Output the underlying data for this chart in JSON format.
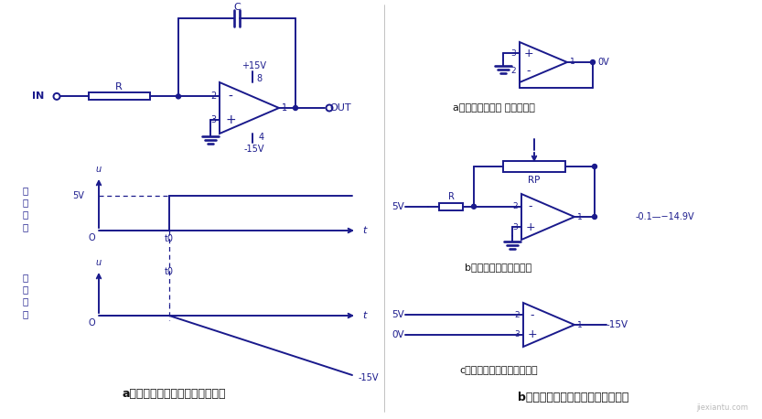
{
  "bg_color": "#ffffff",
  "circuit_color": "#1a1a8c",
  "fig_width": 8.33,
  "fig_height": 4.58,
  "dpi": 100,
  "title_left": "a、积分电路的构成及信号波形图",
  "title_right": "b、积分电路工作过程中的变身电路",
  "caption_a1": "a、变身电路一： 电压跟随器",
  "caption_b1": "b、变身电路二：放大器",
  "caption_c1": "c、变身电路三：电压比较器"
}
